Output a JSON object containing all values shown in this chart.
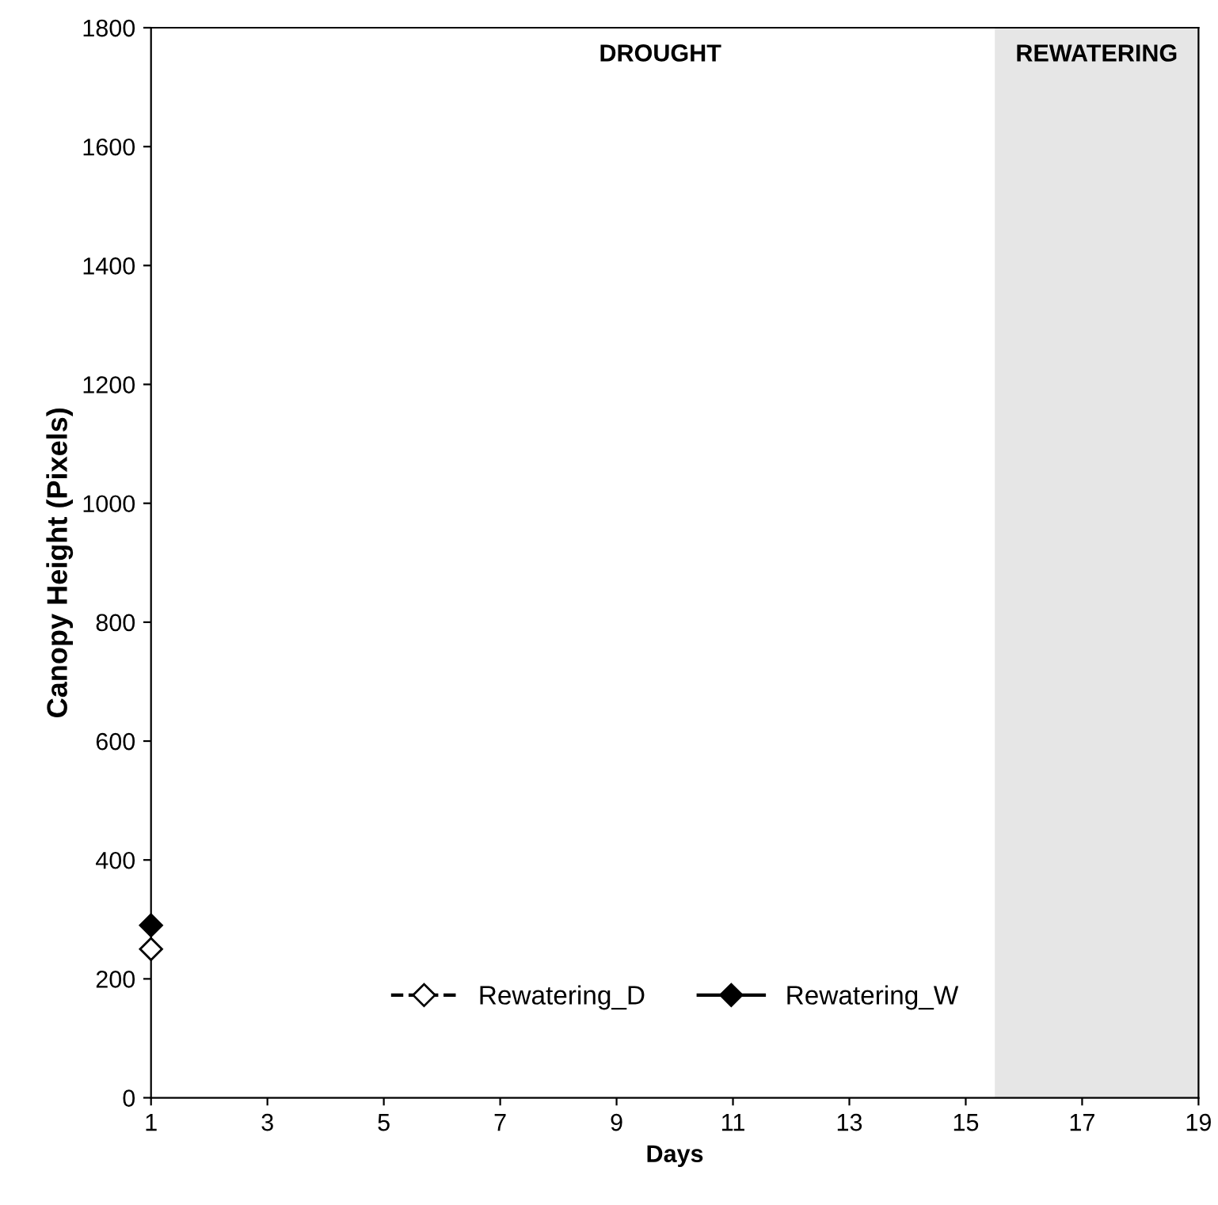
{
  "chart_data": {
    "type": "line",
    "xlabel": "Days",
    "ylabel": "Canopy Height (Pixels)",
    "x": [
      1
    ],
    "series": [
      {
        "name": "Rewatering_D",
        "color": "#000000",
        "values": [
          250
        ],
        "line_style": "dashed"
      },
      {
        "name": "Rewatering_W",
        "color": "#000000",
        "values": [
          290
        ],
        "line_style": "solid"
      }
    ],
    "marker": "diamond",
    "legend": "bottom",
    "grid": false,
    "xlim": [
      1,
      19
    ],
    "xticks": [
      1,
      3,
      5,
      7,
      9,
      11,
      13,
      15,
      17,
      19
    ],
    "ylim": [
      0,
      1800
    ],
    "yticks": [
      0,
      200,
      400,
      600,
      800,
      1000,
      1200,
      1400,
      1600,
      1800
    ],
    "bands": [
      {
        "axis": "x",
        "from": 15.5,
        "to": 19,
        "label": "REWATERING",
        "color": "#e6e6e6"
      }
    ],
    "annotations": [
      "DROUGHT"
    ]
  }
}
